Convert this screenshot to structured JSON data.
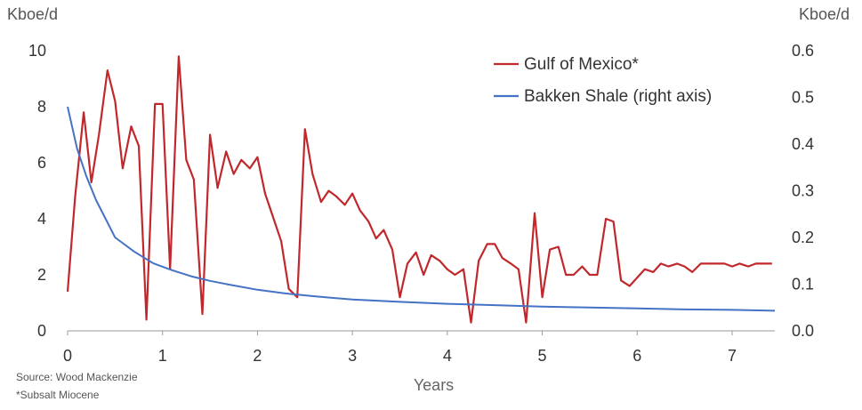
{
  "chart_data": {
    "type": "line",
    "left_unit": "Kboe/d",
    "right_unit": "Kboe/d",
    "xlabel": "Years",
    "source": "Source: Wood Mackenzie",
    "footnote": "*Subsalt Miocene",
    "xlim": [
      0,
      7.45
    ],
    "xticks": [
      "0",
      "1",
      "2",
      "3",
      "4",
      "5",
      "6",
      "7"
    ],
    "ylim_left": [
      0,
      10
    ],
    "yticks_left": [
      "0",
      "2",
      "4",
      "6",
      "8",
      "10"
    ],
    "ylim_right": [
      0,
      0.6
    ],
    "yticks_right": [
      "0.0",
      "0.1",
      "0.2",
      "0.3",
      "0.4",
      "0.5",
      "0.6"
    ],
    "legend_position": "top-right",
    "series": [
      {
        "name": "Gulf of Mexico*",
        "axis": "left",
        "color": "#C0282C",
        "x": [
          0,
          0.08,
          0.17,
          0.25,
          0.33,
          0.42,
          0.5,
          0.58,
          0.67,
          0.75,
          0.83,
          0.92,
          1.0,
          1.08,
          1.17,
          1.25,
          1.33,
          1.42,
          1.5,
          1.58,
          1.67,
          1.75,
          1.83,
          1.92,
          2.0,
          2.08,
          2.17,
          2.25,
          2.33,
          2.42,
          2.5,
          2.58,
          2.67,
          2.75,
          2.83,
          2.92,
          3.0,
          3.08,
          3.17,
          3.25,
          3.33,
          3.42,
          3.5,
          3.58,
          3.67,
          3.75,
          3.83,
          3.92,
          4.0,
          4.08,
          4.17,
          4.25,
          4.33,
          4.42,
          4.5,
          4.58,
          4.67,
          4.75,
          4.83,
          4.92,
          5.0,
          5.08,
          5.17,
          5.25,
          5.33,
          5.42,
          5.5,
          5.58,
          5.67,
          5.75,
          5.83,
          5.92,
          6.0,
          6.08,
          6.17,
          6.25,
          6.33,
          6.42,
          6.5,
          6.58,
          6.67,
          6.75,
          6.83,
          6.92,
          7.0,
          7.08,
          7.17,
          7.25,
          7.33,
          7.42
        ],
        "values": [
          1.4,
          4.8,
          7.8,
          5.3,
          7.0,
          9.3,
          8.2,
          5.8,
          7.3,
          6.6,
          0.4,
          8.1,
          8.1,
          2.2,
          9.8,
          6.1,
          5.4,
          0.6,
          7.0,
          5.1,
          6.4,
          5.6,
          6.1,
          5.8,
          6.2,
          4.9,
          4.0,
          3.2,
          1.5,
          1.2,
          7.2,
          5.6,
          4.6,
          5.0,
          4.8,
          4.5,
          4.9,
          4.3,
          3.9,
          3.3,
          3.6,
          2.9,
          1.2,
          2.4,
          2.8,
          2.0,
          2.7,
          2.5,
          2.2,
          2.0,
          2.2,
          0.3,
          2.5,
          3.1,
          3.1,
          2.6,
          2.4,
          2.2,
          0.3,
          4.2,
          1.2,
          2.9,
          3.0,
          2.0,
          2.0,
          2.3,
          2.0,
          2.0,
          4.0,
          3.9,
          1.8,
          1.6,
          1.9,
          2.2,
          2.1,
          2.4,
          2.3,
          2.4,
          2.3,
          2.1,
          2.4,
          2.4,
          2.4,
          2.4,
          2.3,
          2.4,
          2.3,
          2.4,
          2.4,
          2.4
        ]
      },
      {
        "name": "Bakken Shale (right axis)",
        "axis": "right",
        "color": "#4472C4",
        "x": [
          0,
          0.1,
          0.2,
          0.3,
          0.4,
          0.5,
          0.7,
          0.9,
          1.1,
          1.3,
          1.5,
          1.7,
          2.0,
          2.3,
          2.6,
          3.0,
          3.5,
          4.0,
          4.5,
          5.0,
          5.5,
          6.0,
          6.5,
          7.0,
          7.45
        ],
        "values": [
          0.48,
          0.39,
          0.33,
          0.28,
          0.24,
          0.2,
          0.17,
          0.145,
          0.13,
          0.117,
          0.107,
          0.099,
          0.088,
          0.08,
          0.074,
          0.067,
          0.062,
          0.058,
          0.055,
          0.052,
          0.05,
          0.048,
          0.046,
          0.045,
          0.043
        ]
      }
    ]
  }
}
